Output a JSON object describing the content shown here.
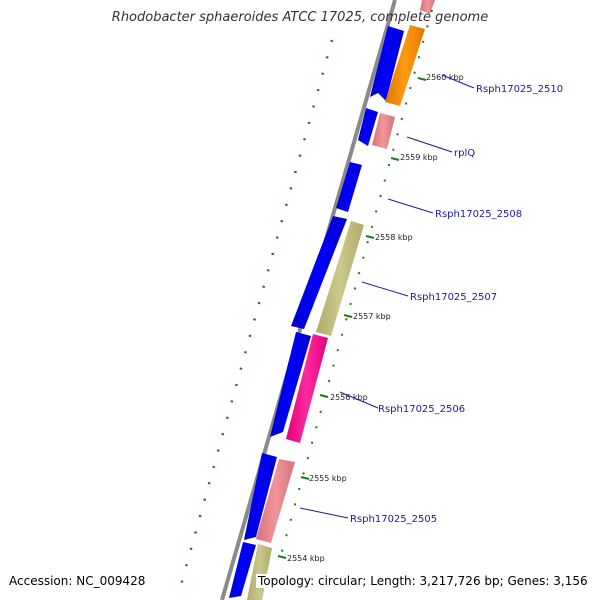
{
  "title": "Rhodobacter sphaeroides ATCC 17025, complete genome",
  "footer": {
    "accession": "Accession: NC_009428",
    "summary": "Topology: circular; Length: 3,217,726 bp; Genes: 3,156"
  },
  "colors": {
    "backbone": "#8a8a8a",
    "tick": "#1f7a1f",
    "forward_gene": "#0000ee",
    "label_line": "#1a1aa6",
    "orange": "#ff8c00",
    "salmon": "#e8868a",
    "olive": "#c2bd7e",
    "magenta": "#ff1493"
  },
  "scale_ticks": [
    "2560 kbp",
    "2559 kbp",
    "2558 kbp",
    "2557 kbp",
    "2556 kbp",
    "2555 kbp",
    "2554 kbp"
  ],
  "gene_labels": [
    "Rsph17025_2510",
    "rplQ",
    "Rsph17025_2508",
    "Rsph17025_2507",
    "Rsph17025_2506",
    "Rsph17025_2505"
  ]
}
